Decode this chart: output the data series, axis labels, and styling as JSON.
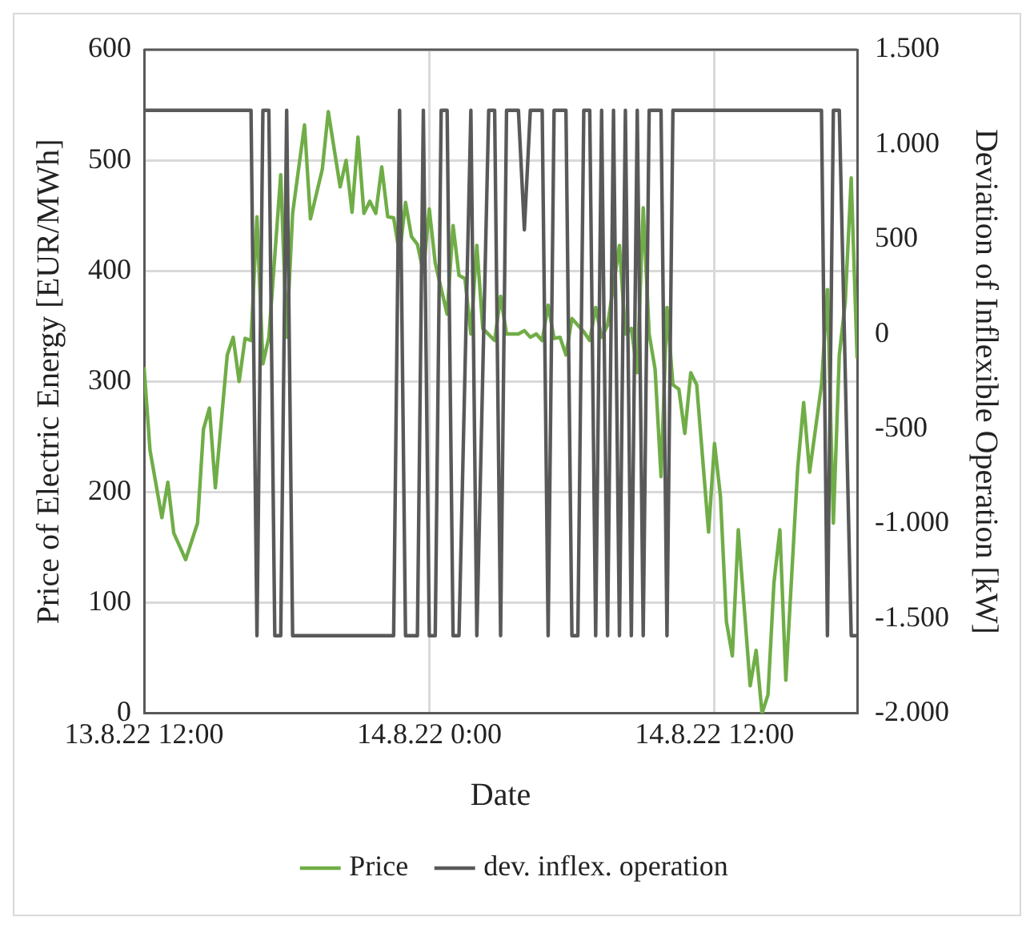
{
  "chart_data": {
    "type": "line",
    "xlabel": "Date",
    "ylabel": "Price of Electric Energy [EUR/MWh]",
    "y2label": "Deviation of Inflexible Operation [kW]",
    "xlim": [
      "--08-13T12:00",
      "--08-14T18:00"
    ],
    "xticks": [
      {
        "value": "--08-13T12:00",
        "label": "13.8.22 12:00"
      },
      {
        "value": "--08-14T00:00",
        "label": "14.8.22 0:00"
      },
      {
        "value": "--08-14T12:00",
        "label": "14.8.22 12:00"
      }
    ],
    "ylim": [
      0,
      600
    ],
    "yticks": [
      0,
      100,
      200,
      300,
      400,
      500,
      600
    ],
    "y2lim": [
      -2000,
      1500
    ],
    "y2ticks": [
      {
        "value": -2000,
        "label": "-2.000"
      },
      {
        "value": -1500,
        "label": "-1.500"
      },
      {
        "value": -1000,
        "label": "-1.000"
      },
      -500,
      0,
      500,
      {
        "value": 1000,
        "label": "1.000"
      },
      {
        "value": 1500,
        "label": "1.500"
      }
    ],
    "grid": true,
    "legend": "bottom",
    "marker": "none",
    "line_style": "solid",
    "series": [
      {
        "name": "Price",
        "color": "#70ad47",
        "x": [
          "--08-13T12:00",
          "--08-13T12:15",
          "--08-13T12:45",
          "--08-13T13:00",
          "--08-13T13:15",
          "--08-13T13:45",
          "--08-13T14:15",
          "--08-13T14:30",
          "--08-13T14:45",
          "--08-13T15:00",
          "--08-13T15:30",
          "--08-13T15:45",
          "--08-13T16:00",
          "--08-13T16:15",
          "--08-13T16:30",
          "--08-13T16:45",
          "--08-13T17:00",
          "--08-13T17:15",
          "--08-13T17:45",
          "--08-13T18:00",
          "--08-13T18:15",
          "--08-13T18:45",
          "--08-13T19:00",
          "--08-13T19:30",
          "--08-13T19:45",
          "--08-13T20:15",
          "--08-13T20:30",
          "--08-13T20:45",
          "--08-13T21:00",
          "--08-13T21:15",
          "--08-13T21:30",
          "--08-13T21:45",
          "--08-13T22:00",
          "--08-13T22:15",
          "--08-13T22:30",
          "--08-13T22:45",
          "--08-13T23:00",
          "--08-13T23:15",
          "--08-13T23:30",
          "--08-13T23:45",
          "--08-14T00:00",
          "--08-14T00:15",
          "--08-14T00:45",
          "--08-14T01:00",
          "--08-14T01:15",
          "--08-14T01:30",
          "--08-14T01:45",
          "--08-14T02:00",
          "--08-14T02:15",
          "--08-14T02:45",
          "--08-14T03:00",
          "--08-14T03:15",
          "--08-14T03:45",
          "--08-14T04:00",
          "--08-14T04:15",
          "--08-14T04:30",
          "--08-14T04:45",
          "--08-14T05:00",
          "--08-14T05:15",
          "--08-14T05:30",
          "--08-14T05:45",
          "--08-14T06:00",
          "--08-14T06:30",
          "--08-14T06:45",
          "--08-14T07:00",
          "--08-14T07:15",
          "--08-14T07:30",
          "--08-14T08:00",
          "--08-14T08:15",
          "--08-14T08:30",
          "--08-14T08:45",
          "--08-14T09:00",
          "--08-14T09:15",
          "--08-14T09:30",
          "--08-14T09:45",
          "--08-14T10:00",
          "--08-14T10:15",
          "--08-14T10:30",
          "--08-14T10:45",
          "--08-14T11:00",
          "--08-14T11:15",
          "--08-14T11:45",
          "--08-14T12:00",
          "--08-14T12:15",
          "--08-14T12:30",
          "--08-14T12:45",
          "--08-14T13:00",
          "--08-14T13:30",
          "--08-14T13:45",
          "--08-14T14:00",
          "--08-14T14:15",
          "--08-14T14:30",
          "--08-14T14:45",
          "--08-14T15:00",
          "--08-14T15:30",
          "--08-14T15:45",
          "--08-14T16:00",
          "--08-14T16:30",
          "--08-14T16:45",
          "--08-14T17:00",
          "--08-14T17:15",
          "--08-14T17:30",
          "--08-14T17:45",
          "--08-14T18:00"
        ],
        "values": [
          313,
          238,
          177,
          209,
          163,
          139,
          172,
          257,
          276,
          204,
          324,
          340,
          300,
          339,
          337,
          449,
          316,
          340,
          487,
          340,
          452,
          532,
          447,
          492,
          544,
          476,
          500,
          453,
          521,
          452,
          463,
          452,
          494,
          449,
          448,
          415,
          462,
          431,
          424,
          399,
          456,
          407,
          361,
          441,
          396,
          393,
          343,
          423,
          348,
          337,
          377,
          343,
          343,
          346,
          340,
          343,
          337,
          369,
          339,
          340,
          324,
          357,
          345,
          337,
          367,
          340,
          351,
          423,
          343,
          348,
          308,
          457,
          343,
          311,
          214,
          367,
          297,
          293,
          253,
          308,
          297,
          164,
          244,
          196,
          83,
          52,
          166,
          25,
          57,
          0,
          17,
          118,
          166,
          30,
          222,
          281,
          218,
          297,
          383,
          172,
          324,
          372,
          484,
          321
        ]
      },
      {
        "name": "dev. inflex. operation",
        "color": "#595959",
        "axis": "y2",
        "x": [
          "--08-13T12:00",
          "--08-13T16:30",
          "--08-13T16:45",
          "--08-13T17:00",
          "--08-13T17:15",
          "--08-13T17:30",
          "--08-13T17:45",
          "--08-13T18:00",
          "--08-13T18:15",
          "--08-13T22:30",
          "--08-13T22:45",
          "--08-13T23:00",
          "--08-13T23:30",
          "--08-13T23:45",
          "--08-14T00:00",
          "--08-14T00:15",
          "--08-14T00:30",
          "--08-14T00:45",
          "--08-14T01:00",
          "--08-14T01:15",
          "--08-14T01:45",
          "--08-14T02:00",
          "--08-14T02:30",
          "--08-14T02:45",
          "--08-14T03:00",
          "--08-14T03:15",
          "--08-14T03:45",
          "--08-14T04:00",
          "--08-14T04:15",
          "--08-14T04:45",
          "--08-14T05:00",
          "--08-14T05:15",
          "--08-14T05:45",
          "--08-14T06:00",
          "--08-14T06:15",
          "--08-14T06:30",
          "--08-14T06:45",
          "--08-14T07:00",
          "--08-14T07:15",
          "--08-14T07:30",
          "--08-14T07:45",
          "--08-14T08:00",
          "--08-14T08:15",
          "--08-14T08:30",
          "--08-14T08:45",
          "--08-14T09:00",
          "--08-14T09:15",
          "--08-14T09:45",
          "--08-14T10:00",
          "--08-14T10:15",
          "--08-14T16:30",
          "--08-14T16:45",
          "--08-14T17:00",
          "--08-14T17:15",
          "--08-14T17:45",
          "--08-14T18:00"
        ],
        "values": [
          1180,
          1180,
          -1590,
          1180,
          1180,
          -1590,
          -1590,
          1180,
          -1590,
          -1590,
          1180,
          -1590,
          -1590,
          1180,
          -1590,
          -1590,
          1180,
          1180,
          -1590,
          -1590,
          1180,
          -1590,
          1180,
          1180,
          -1590,
          1180,
          1180,
          550,
          1180,
          1180,
          -1590,
          1180,
          1180,
          -1590,
          -1590,
          1180,
          1180,
          -1590,
          1180,
          -1590,
          1180,
          -1590,
          1180,
          -1590,
          1180,
          -1590,
          1180,
          1180,
          -1590,
          1180,
          1180,
          -1590,
          1180,
          1180,
          -1590,
          -1590
        ]
      }
    ]
  }
}
